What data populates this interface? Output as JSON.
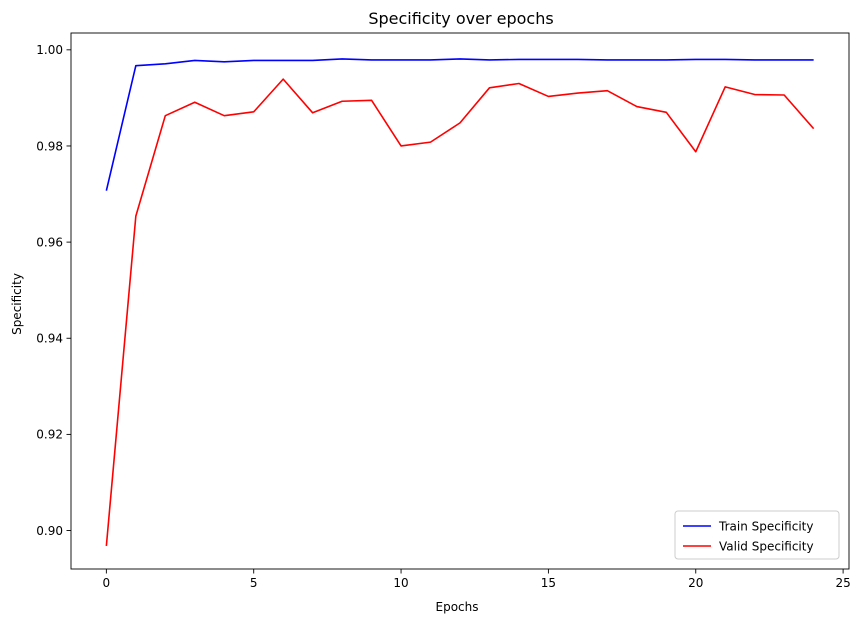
{
  "chart_data": {
    "type": "line",
    "title": "Specificity over epochs",
    "xlabel": "Epochs",
    "ylabel": "Specificity",
    "xlim": [
      -1.2,
      25.2
    ],
    "ylim": [
      0.892,
      1.0035
    ],
    "x_ticks": [
      0,
      5,
      10,
      15,
      20,
      25
    ],
    "x_tick_labels": [
      "0",
      "5",
      "10",
      "15",
      "20",
      "25"
    ],
    "y_ticks": [
      0.9,
      0.92,
      0.94,
      0.96,
      0.98,
      1.0
    ],
    "y_tick_labels": [
      "0.90",
      "0.92",
      "0.94",
      "0.96",
      "0.98",
      "1.00"
    ],
    "grid": false,
    "legend_position": "lower-right",
    "x": [
      0,
      1,
      2,
      3,
      4,
      5,
      6,
      7,
      8,
      9,
      10,
      11,
      12,
      13,
      14,
      15,
      16,
      17,
      18,
      19,
      20,
      21,
      22,
      23,
      24
    ],
    "series": [
      {
        "name": "Train Specificity",
        "color": "#0000ff",
        "values": [
          0.9707,
          0.9967,
          0.9971,
          0.9978,
          0.9975,
          0.9978,
          0.9978,
          0.9978,
          0.9981,
          0.9979,
          0.9979,
          0.9979,
          0.9981,
          0.9979,
          0.998,
          0.998,
          0.998,
          0.9979,
          0.9979,
          0.9979,
          0.998,
          0.998,
          0.9979,
          0.9979,
          0.9979
        ]
      },
      {
        "name": "Valid Specificity",
        "color": "#ff0000",
        "values": [
          0.8968,
          0.9654,
          0.9863,
          0.9891,
          0.9863,
          0.9871,
          0.9939,
          0.9869,
          0.9893,
          0.9895,
          0.98,
          0.9808,
          0.9848,
          0.9921,
          0.993,
          0.9903,
          0.991,
          0.9915,
          0.9882,
          0.987,
          0.9788,
          0.9923,
          0.9907,
          0.9906,
          0.9836
        ]
      }
    ]
  }
}
